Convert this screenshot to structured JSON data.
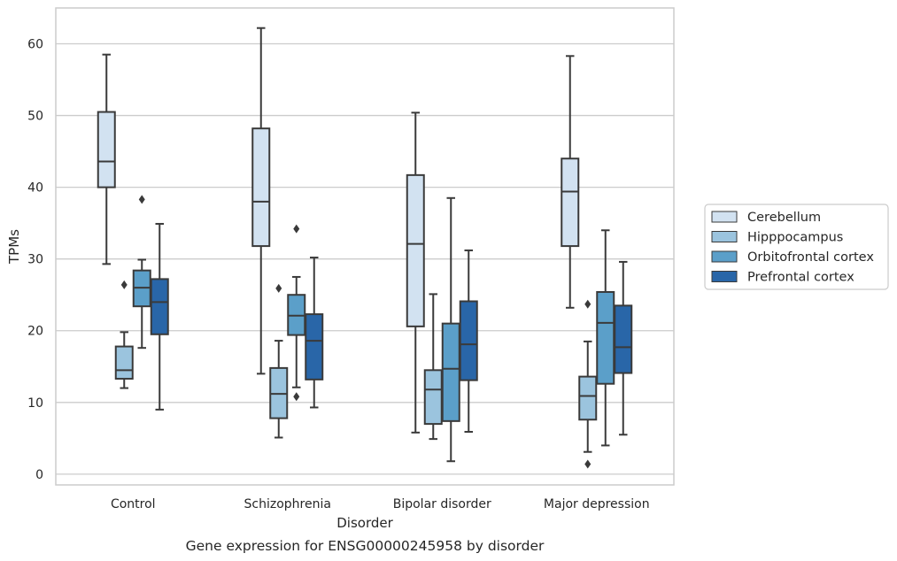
{
  "chart_data": {
    "type": "box",
    "caption": "Gene expression for ENSG00000245958 by disorder",
    "xlabel": "Disorder",
    "ylabel": "TPMs",
    "ylim": [
      -1.5,
      65
    ],
    "yticks": [
      0,
      10,
      20,
      30,
      40,
      50,
      60
    ],
    "grid": "horizontal",
    "legend_position": "right",
    "categories": [
      "Control",
      "Schizophrenia",
      "Bipolar disorder",
      "Major depression"
    ],
    "series": [
      {
        "name": "Cerebellum",
        "color": "#d2e2f1",
        "boxes": [
          {
            "whisker_low": 29.3,
            "q1": 40.0,
            "median": 43.6,
            "q3": 50.5,
            "whisker_high": 58.5,
            "outliers": []
          },
          {
            "whisker_low": 14.0,
            "q1": 31.8,
            "median": 38.0,
            "q3": 48.2,
            "whisker_high": 62.2,
            "outliers": []
          },
          {
            "whisker_low": 5.8,
            "q1": 20.6,
            "median": 32.1,
            "q3": 41.7,
            "whisker_high": 50.4,
            "outliers": []
          },
          {
            "whisker_low": 23.2,
            "q1": 31.8,
            "median": 39.4,
            "q3": 44.0,
            "whisker_high": 58.3,
            "outliers": []
          }
        ]
      },
      {
        "name": "Hipppocampus",
        "color": "#9bc4de",
        "boxes": [
          {
            "whisker_low": 12.0,
            "q1": 13.3,
            "median": 14.5,
            "q3": 17.8,
            "whisker_high": 19.8,
            "outliers": [
              26.4
            ]
          },
          {
            "whisker_low": 5.1,
            "q1": 7.8,
            "median": 11.2,
            "q3": 14.8,
            "whisker_high": 18.6,
            "outliers": [
              25.9
            ]
          },
          {
            "whisker_low": 4.9,
            "q1": 7.0,
            "median": 11.8,
            "q3": 14.5,
            "whisker_high": 25.1,
            "outliers": []
          },
          {
            "whisker_low": 3.1,
            "q1": 7.6,
            "median": 10.9,
            "q3": 13.6,
            "whisker_high": 18.5,
            "outliers": [
              1.4,
              23.7
            ]
          }
        ]
      },
      {
        "name": "Orbitofrontal cortex",
        "color": "#5b9fc9",
        "boxes": [
          {
            "whisker_low": 17.6,
            "q1": 23.4,
            "median": 26.0,
            "q3": 28.4,
            "whisker_high": 29.9,
            "outliers": [
              38.3
            ]
          },
          {
            "whisker_low": 12.1,
            "q1": 19.4,
            "median": 22.1,
            "q3": 25.0,
            "whisker_high": 27.5,
            "outliers": [
              10.8,
              34.2
            ]
          },
          {
            "whisker_low": 1.8,
            "q1": 7.4,
            "median": 14.7,
            "q3": 21.0,
            "whisker_high": 38.5,
            "outliers": []
          },
          {
            "whisker_low": 4.0,
            "q1": 12.6,
            "median": 21.1,
            "q3": 25.4,
            "whisker_high": 34.0,
            "outliers": []
          }
        ]
      },
      {
        "name": "Prefrontal cortex",
        "color": "#2966a8",
        "boxes": [
          {
            "whisker_low": 9.0,
            "q1": 19.5,
            "median": 24.0,
            "q3": 27.2,
            "whisker_high": 34.9,
            "outliers": []
          },
          {
            "whisker_low": 9.3,
            "q1": 13.2,
            "median": 18.6,
            "q3": 22.3,
            "whisker_high": 30.2,
            "outliers": []
          },
          {
            "whisker_low": 5.9,
            "q1": 13.1,
            "median": 18.1,
            "q3": 24.1,
            "whisker_high": 31.2,
            "outliers": []
          },
          {
            "whisker_low": 5.5,
            "q1": 14.1,
            "median": 17.7,
            "q3": 23.5,
            "whisker_high": 29.6,
            "outliers": []
          }
        ]
      }
    ]
  }
}
